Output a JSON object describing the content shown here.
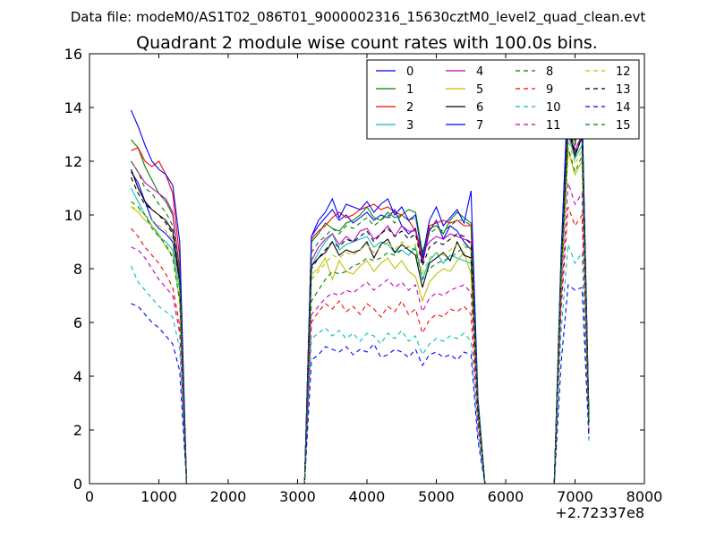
{
  "suptitle": "Data file: modeM0/AS1T02_086T01_9000002316_15630cztM0_level2_quad_clean.evt",
  "chart_data": {
    "type": "line",
    "title": "Quadrant 2 module wise count rates with 100.0s bins.",
    "xlabel": "",
    "ylabel": "",
    "x_offset_label": "+2.72337e8",
    "xlim": [
      0,
      8000
    ],
    "ylim": [
      0,
      16
    ],
    "xticks": [
      "0",
      "1000",
      "2000",
      "3000",
      "4000",
      "5000",
      "6000",
      "7000",
      "8000"
    ],
    "yticks": [
      "0",
      "2",
      "4",
      "6",
      "8",
      "10",
      "12",
      "14",
      "16"
    ],
    "grid": false,
    "legend": {
      "placement": "top-right",
      "columns": 4
    },
    "x": [
      600,
      700,
      800,
      900,
      1000,
      1100,
      1200,
      1300,
      1400,
      1500,
      1600,
      1700,
      1800,
      1900,
      2000,
      2100,
      2200,
      2300,
      2400,
      2500,
      2600,
      2700,
      2800,
      2900,
      3000,
      3100,
      3200,
      3300,
      3400,
      3500,
      3600,
      3700,
      3800,
      3900,
      4000,
      4100,
      4200,
      4300,
      4400,
      4500,
      4600,
      4700,
      4800,
      4900,
      5000,
      5100,
      5200,
      5300,
      5400,
      5500,
      5600,
      5700,
      5800,
      5900,
      6000,
      6100,
      6200,
      6300,
      6400,
      6500,
      6600,
      6700,
      6800,
      6900,
      7000,
      7100,
      7200
    ],
    "series": [
      {
        "name": "0",
        "color": "#0000ff",
        "dash": "solid",
        "values": [
          11.6,
          11.2,
          10.5,
          9.8,
          9.5,
          9.3,
          9.0,
          7.5,
          0,
          0,
          0,
          0,
          0,
          0,
          0,
          0,
          0,
          0,
          0,
          0,
          0,
          0,
          0,
          0,
          0,
          0,
          9.2,
          9.6,
          9.9,
          10.2,
          9.8,
          10.0,
          9.7,
          9.9,
          10.1,
          9.8,
          10.0,
          9.9,
          10.2,
          9.6,
          9.3,
          9.5,
          8.2,
          9.4,
          9.8,
          9.1,
          9.6,
          9.4,
          9.0,
          8.7,
          3.0,
          0,
          0,
          0,
          0,
          0,
          0,
          0,
          0,
          0,
          0,
          0,
          8.5,
          14.8,
          13.3,
          14.0,
          2.5
        ]
      },
      {
        "name": "1",
        "color": "#008000",
        "dash": "solid",
        "values": [
          12.8,
          12.5,
          11.8,
          11.3,
          10.8,
          10.5,
          10.0,
          8.0,
          0,
          0,
          0,
          0,
          0,
          0,
          0,
          0,
          0,
          0,
          0,
          0,
          0,
          0,
          0,
          0,
          0,
          0,
          9.0,
          9.3,
          9.7,
          9.5,
          9.4,
          9.7,
          9.8,
          10.0,
          10.3,
          9.9,
          9.8,
          10.1,
          9.9,
          10.0,
          10.2,
          10.1,
          8.6,
          9.5,
          9.6,
          9.3,
          9.8,
          10.1,
          9.9,
          9.7,
          3.1,
          0,
          0,
          0,
          0,
          0,
          0,
          0,
          0,
          0,
          0,
          0,
          8.2,
          13.8,
          12.7,
          13.4,
          2.4
        ]
      },
      {
        "name": "2",
        "color": "#ff0000",
        "dash": "solid",
        "values": [
          12.4,
          12.5,
          12.0,
          11.8,
          12.0,
          11.5,
          10.8,
          8.4,
          0,
          0,
          0,
          0,
          0,
          0,
          0,
          0,
          0,
          0,
          0,
          0,
          0,
          0,
          0,
          0,
          0,
          0,
          9.1,
          9.4,
          9.6,
          9.9,
          10.1,
          9.9,
          10.0,
          10.2,
          10.3,
          10.4,
          10.2,
          10.3,
          10.1,
          10.0,
          9.8,
          9.4,
          8.3,
          9.6,
          9.7,
          9.8,
          9.7,
          9.8,
          9.6,
          9.6,
          3.0,
          0,
          0,
          0,
          0,
          0,
          0,
          0,
          0,
          0,
          0,
          0,
          8.3,
          13.9,
          12.8,
          13.6,
          2.4
        ]
      },
      {
        "name": "3",
        "color": "#00bfbf",
        "dash": "solid",
        "values": [
          11.0,
          10.5,
          10.0,
          9.6,
          9.2,
          9.0,
          8.7,
          7.2,
          0,
          0,
          0,
          0,
          0,
          0,
          0,
          0,
          0,
          0,
          0,
          0,
          0,
          0,
          0,
          0,
          0,
          0,
          8.1,
          8.6,
          9.0,
          9.3,
          8.7,
          8.9,
          9.0,
          9.1,
          9.2,
          8.8,
          9.0,
          8.9,
          8.6,
          8.7,
          8.5,
          8.8,
          7.6,
          8.3,
          8.6,
          8.2,
          8.5,
          8.4,
          8.3,
          8.2,
          2.8,
          0,
          0,
          0,
          0,
          0,
          0,
          0,
          0,
          0,
          0,
          0,
          7.8,
          13.0,
          12.1,
          12.6,
          2.3
        ]
      },
      {
        "name": "4",
        "color": "#bf00bf",
        "dash": "solid",
        "values": [
          12.0,
          11.6,
          11.2,
          11.0,
          10.8,
          10.6,
          10.1,
          7.8,
          0,
          0,
          0,
          0,
          0,
          0,
          0,
          0,
          0,
          0,
          0,
          0,
          0,
          0,
          0,
          0,
          0,
          0,
          8.3,
          8.8,
          9.1,
          9.3,
          8.9,
          9.2,
          9.0,
          9.4,
          9.5,
          9.1,
          9.3,
          9.6,
          9.2,
          9.6,
          9.4,
          9.4,
          8.6,
          9.0,
          9.2,
          9.1,
          9.3,
          9.2,
          9.1,
          9.0,
          2.9,
          0,
          0,
          0,
          0,
          0,
          0,
          0,
          0,
          0,
          0,
          0,
          8.0,
          13.4,
          12.4,
          13.0,
          2.3
        ]
      },
      {
        "name": "5",
        "color": "#bfbf00",
        "dash": "solid",
        "values": [
          10.3,
          10.1,
          9.8,
          9.6,
          9.3,
          8.8,
          8.5,
          6.8,
          0,
          0,
          0,
          0,
          0,
          0,
          0,
          0,
          0,
          0,
          0,
          0,
          0,
          0,
          0,
          0,
          0,
          0,
          7.8,
          8.0,
          8.4,
          7.6,
          8.3,
          7.9,
          7.8,
          8.1,
          8.3,
          7.9,
          8.2,
          8.4,
          8.0,
          8.3,
          7.9,
          7.7,
          6.8,
          7.5,
          7.8,
          8.0,
          7.9,
          8.3,
          8.6,
          7.8,
          2.6,
          0,
          0,
          0,
          0,
          0,
          0,
          0,
          0,
          0,
          0,
          0,
          7.5,
          12.4,
          11.5,
          12.0,
          2.2
        ]
      },
      {
        "name": "6",
        "color": "#000000",
        "dash": "solid",
        "values": [
          11.7,
          11.0,
          10.5,
          10.2,
          10.0,
          9.8,
          9.4,
          7.6,
          0,
          0,
          0,
          0,
          0,
          0,
          0,
          0,
          0,
          0,
          0,
          0,
          0,
          0,
          0,
          0,
          0,
          0,
          8.1,
          8.4,
          8.6,
          9.0,
          8.5,
          8.7,
          8.6,
          8.7,
          9.0,
          8.4,
          8.9,
          9.1,
          8.6,
          8.9,
          8.7,
          8.5,
          7.3,
          8.2,
          8.4,
          8.6,
          8.3,
          9.0,
          8.5,
          8.4,
          2.8,
          0,
          0,
          0,
          0,
          0,
          0,
          0,
          0,
          0,
          0,
          0,
          7.9,
          13.2,
          12.2,
          12.9,
          2.3
        ]
      },
      {
        "name": "7",
        "color": "#0000ff",
        "dash": "solid",
        "values": [
          13.9,
          13.3,
          12.6,
          12.0,
          11.7,
          11.5,
          11.1,
          9.0,
          0,
          0,
          0,
          0,
          0,
          0,
          0,
          0,
          0,
          0,
          0,
          0,
          0,
          0,
          0,
          0,
          0,
          0,
          9.2,
          9.8,
          10.1,
          10.6,
          9.9,
          10.4,
          10.3,
          10.2,
          10.5,
          10.1,
          10.4,
          10.6,
          10.0,
          10.3,
          9.8,
          10.0,
          8.4,
          9.8,
          10.3,
          9.6,
          9.9,
          10.2,
          9.7,
          10.9,
          3.2,
          0,
          0,
          0,
          0,
          0,
          0,
          0,
          0,
          0,
          0,
          0,
          8.6,
          14.5,
          13.2,
          14.0,
          2.5
        ]
      },
      {
        "name": "8",
        "color": "#008000",
        "dash": "dashed",
        "values": [
          10.5,
          10.3,
          10.0,
          9.5,
          9.2,
          8.9,
          8.4,
          6.8,
          0,
          0,
          0,
          0,
          0,
          0,
          0,
          0,
          0,
          0,
          0,
          0,
          0,
          0,
          0,
          0,
          0,
          0,
          6.8,
          7.2,
          7.6,
          7.9,
          7.8,
          7.9,
          8.1,
          8.2,
          8.4,
          8.3,
          8.4,
          8.6,
          8.5,
          8.7,
          8.8,
          8.7,
          7.6,
          8.0,
          8.2,
          8.3,
          8.4,
          8.6,
          8.8,
          8.8,
          2.7,
          0,
          0,
          0,
          0,
          0,
          0,
          0,
          0,
          0,
          0,
          0,
          7.2,
          12.5,
          11.6,
          12.2,
          2.2
        ]
      },
      {
        "name": "9",
        "color": "#ff0000",
        "dash": "dashed",
        "values": [
          9.5,
          9.2,
          8.8,
          8.5,
          8.2,
          7.8,
          7.3,
          5.9,
          0,
          0,
          0,
          0,
          0,
          0,
          0,
          0,
          0,
          0,
          0,
          0,
          0,
          0,
          0,
          0,
          0,
          0,
          6.0,
          6.4,
          6.7,
          6.5,
          6.8,
          6.4,
          6.6,
          6.3,
          6.7,
          6.5,
          6.2,
          6.6,
          6.4,
          6.8,
          6.3,
          6.5,
          5.6,
          6.1,
          6.3,
          6.2,
          6.5,
          6.4,
          6.6,
          6.3,
          2.2,
          0,
          0,
          0,
          0,
          0,
          0,
          0,
          0,
          0,
          0,
          0,
          6.5,
          10.3,
          9.6,
          10.0,
          1.8
        ]
      },
      {
        "name": "10",
        "color": "#00bfbf",
        "dash": "dashed",
        "values": [
          8.1,
          7.5,
          7.2,
          6.9,
          6.6,
          6.4,
          6.2,
          5.0,
          0,
          0,
          0,
          0,
          0,
          0,
          0,
          0,
          0,
          0,
          0,
          0,
          0,
          0,
          0,
          0,
          0,
          0,
          5.4,
          5.6,
          5.8,
          5.5,
          5.7,
          5.4,
          5.6,
          5.3,
          5.6,
          5.5,
          5.2,
          5.6,
          5.4,
          5.7,
          5.3,
          5.5,
          4.8,
          5.2,
          5.4,
          5.3,
          5.5,
          5.4,
          5.6,
          5.3,
          1.9,
          0,
          0,
          0,
          0,
          0,
          0,
          0,
          0,
          0,
          0,
          0,
          5.7,
          8.9,
          8.2,
          8.6,
          1.6
        ]
      },
      {
        "name": "11",
        "color": "#bf00bf",
        "dash": "dashed",
        "values": [
          8.8,
          8.7,
          8.4,
          8.0,
          7.6,
          7.3,
          7.0,
          5.6,
          0,
          0,
          0,
          0,
          0,
          0,
          0,
          0,
          0,
          0,
          0,
          0,
          0,
          0,
          0,
          0,
          0,
          0,
          6.3,
          6.6,
          6.9,
          7.1,
          7.0,
          7.2,
          7.1,
          7.3,
          7.5,
          7.2,
          7.4,
          7.6,
          7.3,
          7.5,
          7.2,
          7.4,
          6.4,
          6.9,
          7.1,
          7.0,
          7.2,
          7.3,
          7.4,
          7.1,
          2.4,
          0,
          0,
          0,
          0,
          0,
          0,
          0,
          0,
          0,
          0,
          0,
          6.8,
          11.2,
          10.4,
          10.8,
          2.0
        ]
      },
      {
        "name": "12",
        "color": "#bfbf00",
        "dash": "dashed",
        "values": [
          10.3,
          10.2,
          10.0,
          9.8,
          9.6,
          9.4,
          9.1,
          7.4,
          0,
          0,
          0,
          0,
          0,
          0,
          0,
          0,
          0,
          0,
          0,
          0,
          0,
          0,
          0,
          0,
          0,
          0,
          7.6,
          7.9,
          8.2,
          8.5,
          8.4,
          8.6,
          8.5,
          8.7,
          8.9,
          8.6,
          8.8,
          9.0,
          8.7,
          9.0,
          8.8,
          8.9,
          7.8,
          8.4,
          8.6,
          8.5,
          8.7,
          8.9,
          8.9,
          8.7,
          2.7,
          0,
          0,
          0,
          0,
          0,
          0,
          0,
          0,
          0,
          0,
          0,
          7.6,
          12.8,
          11.9,
          12.4,
          2.2
        ]
      },
      {
        "name": "13",
        "color": "#000000",
        "dash": "dashed",
        "values": [
          11.4,
          10.8,
          10.4,
          10.2,
          10.0,
          9.7,
          9.3,
          7.5,
          0,
          0,
          0,
          0,
          0,
          0,
          0,
          0,
          0,
          0,
          0,
          0,
          0,
          0,
          0,
          0,
          0,
          0,
          8.0,
          8.4,
          8.7,
          9.0,
          8.8,
          9.1,
          9.0,
          9.2,
          9.4,
          9.0,
          9.3,
          9.5,
          9.2,
          9.4,
          9.1,
          9.3,
          8.1,
          8.8,
          9.0,
          8.9,
          9.1,
          9.3,
          9.2,
          8.9,
          2.8,
          0,
          0,
          0,
          0,
          0,
          0,
          0,
          0,
          0,
          0,
          0,
          7.9,
          13.3,
          12.3,
          12.9,
          2.3
        ]
      },
      {
        "name": "14",
        "color": "#0000ff",
        "dash": "dashed",
        "values": [
          6.7,
          6.6,
          6.3,
          6.0,
          5.8,
          5.5,
          5.2,
          4.2,
          0,
          0,
          0,
          0,
          0,
          0,
          0,
          0,
          0,
          0,
          0,
          0,
          0,
          0,
          0,
          0,
          0,
          0,
          4.6,
          4.8,
          5.1,
          5.0,
          4.9,
          5.1,
          4.8,
          5.0,
          4.9,
          5.2,
          4.7,
          4.8,
          5.0,
          4.9,
          4.7,
          5.0,
          4.4,
          4.8,
          4.9,
          4.7,
          4.8,
          4.6,
          4.9,
          4.8,
          1.6,
          0,
          0,
          0,
          0,
          0,
          0,
          0,
          0,
          0,
          0,
          0,
          4.5,
          7.4,
          7.2,
          7.3,
          1.7
        ]
      },
      {
        "name": "15",
        "color": "#008000",
        "dash": "dashed",
        "values": [
          12.0,
          11.6,
          11.0,
          10.8,
          10.4,
          10.1,
          9.6,
          7.8,
          0,
          0,
          0,
          0,
          0,
          0,
          0,
          0,
          0,
          0,
          0,
          0,
          0,
          0,
          0,
          0,
          0,
          0,
          8.6,
          9.0,
          9.2,
          9.5,
          9.3,
          9.6,
          9.5,
          9.7,
          9.9,
          9.6,
          9.8,
          10.0,
          9.7,
          10.0,
          9.8,
          9.9,
          8.6,
          9.3,
          9.5,
          9.4,
          9.6,
          9.8,
          9.8,
          9.6,
          3.0,
          0,
          0,
          0,
          0,
          0,
          0,
          0,
          0,
          0,
          0,
          0,
          8.1,
          13.6,
          12.6,
          13.2,
          2.4
        ]
      }
    ]
  }
}
